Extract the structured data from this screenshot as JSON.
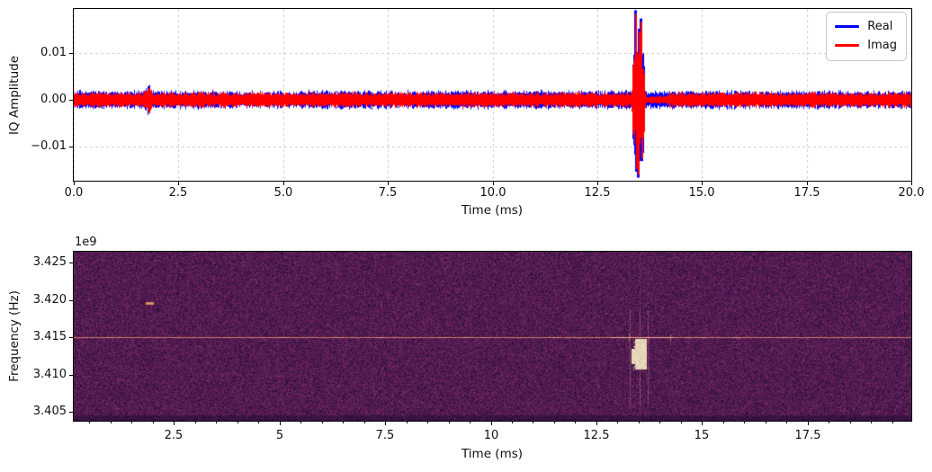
{
  "chart_data": [
    {
      "type": "line",
      "title": "",
      "description": "Time-domain IQ capture: noise floor with a weak burst near 1.8 ms and a strong wideband burst near 13.5 ms",
      "xlabel": "Time (ms)",
      "ylabel": "IQ Amplitude",
      "xlim": [
        0,
        20
      ],
      "ylim": [
        -0.0173,
        0.0194
      ],
      "xticks": [
        0,
        2.5,
        5,
        7.5,
        10,
        12.5,
        15,
        17.5,
        20
      ],
      "xtick_labels": [
        "0.0",
        "2.5",
        "5.0",
        "7.5",
        "10.0",
        "12.5",
        "15.0",
        "17.5",
        "20.0"
      ],
      "yticks": [
        0.01,
        0,
        -0.01
      ],
      "ytick_labels": [
        "0.01",
        "0.00",
        "−0.01"
      ],
      "grid": true,
      "legend_position": "upper right",
      "series": [
        {
          "name": "Real",
          "color": "#0000ff",
          "noise_halfwidth": 0.0015
        },
        {
          "name": "Imag",
          "color": "#ff0000",
          "noise_halfwidth": 0.00128
        }
      ],
      "events": [
        {
          "shape": "gauss",
          "t": 1.79,
          "sigma": 0.05,
          "gain": 1.0,
          "label": "weak burst ~±0.0026 at 1.8 ms"
        },
        {
          "shape": "flat",
          "span": [
            13.36,
            13.6
          ],
          "gain": 5.8,
          "label": "strong burst bulk ~±0.009 at 13.33–13.64 ms"
        },
        {
          "shape": "flat",
          "span": [
            13.66,
            14.15
          ],
          "gain": -0.45,
          "only": "Imag",
          "label": "quiet notch after burst"
        }
      ],
      "spikes": [
        {
          "t": 13.41,
          "a": 0.0184
        },
        {
          "t": 13.435,
          "a": -0.0148
        },
        {
          "t": 13.47,
          "a": -0.016
        },
        {
          "t": 13.5,
          "a": 0.0146
        },
        {
          "t": 13.525,
          "a": 0.0167
        },
        {
          "t": 13.555,
          "a": -0.0126
        }
      ]
    },
    {
      "type": "heatmap",
      "title": "",
      "description": "Spectrogram: dark purple noise, faint carrier line at 3.415 GHz, short pulse near 1.9 ms at ~3.4196 GHz, burst blob near 13.5 ms spanning 3.4107–3.4148 GHz",
      "xlabel": "Time (ms)",
      "ylabel": "Frequency (Hz)",
      "offset_text": "1e9",
      "xlim": [
        0.135,
        19.95
      ],
      "ylim": [
        3403800000,
        3426450000
      ],
      "xticks": [
        2.5,
        5,
        7.5,
        10,
        12.5,
        15,
        17.5
      ],
      "xtick_labels": [
        "2.5",
        "5",
        "7.5",
        "10",
        "12.5",
        "15",
        "17.5"
      ],
      "minor_tick_step_ms": 0.5,
      "yticks": [
        3425000000,
        3420000000,
        3415000000,
        3410000000,
        3405000000
      ],
      "ytick_labels": [
        "3.425",
        "3.420",
        "3.415",
        "3.410",
        "3.405"
      ],
      "noise_palette": [
        "#1f0c30",
        "#2b0f3a",
        "#361242",
        "#411549",
        "#4c1850",
        "#571c55",
        "#63205a",
        "#6f255e",
        "#7b2a61",
        "#8a3166"
      ],
      "features": {
        "carrier_freq_hz": 3415000000,
        "carrier_line_color": "#e89169",
        "burst": {
          "t_span_ms": [
            13.33,
            13.7
          ],
          "freq_span_hz": [
            3410700000,
            3414800000
          ],
          "color": "#e7d7bb"
        },
        "short_pulse": {
          "t_span_ms": [
            1.84,
            2.03
          ],
          "freq_hz": 3419600000,
          "color": "#c9875a"
        }
      }
    }
  ]
}
